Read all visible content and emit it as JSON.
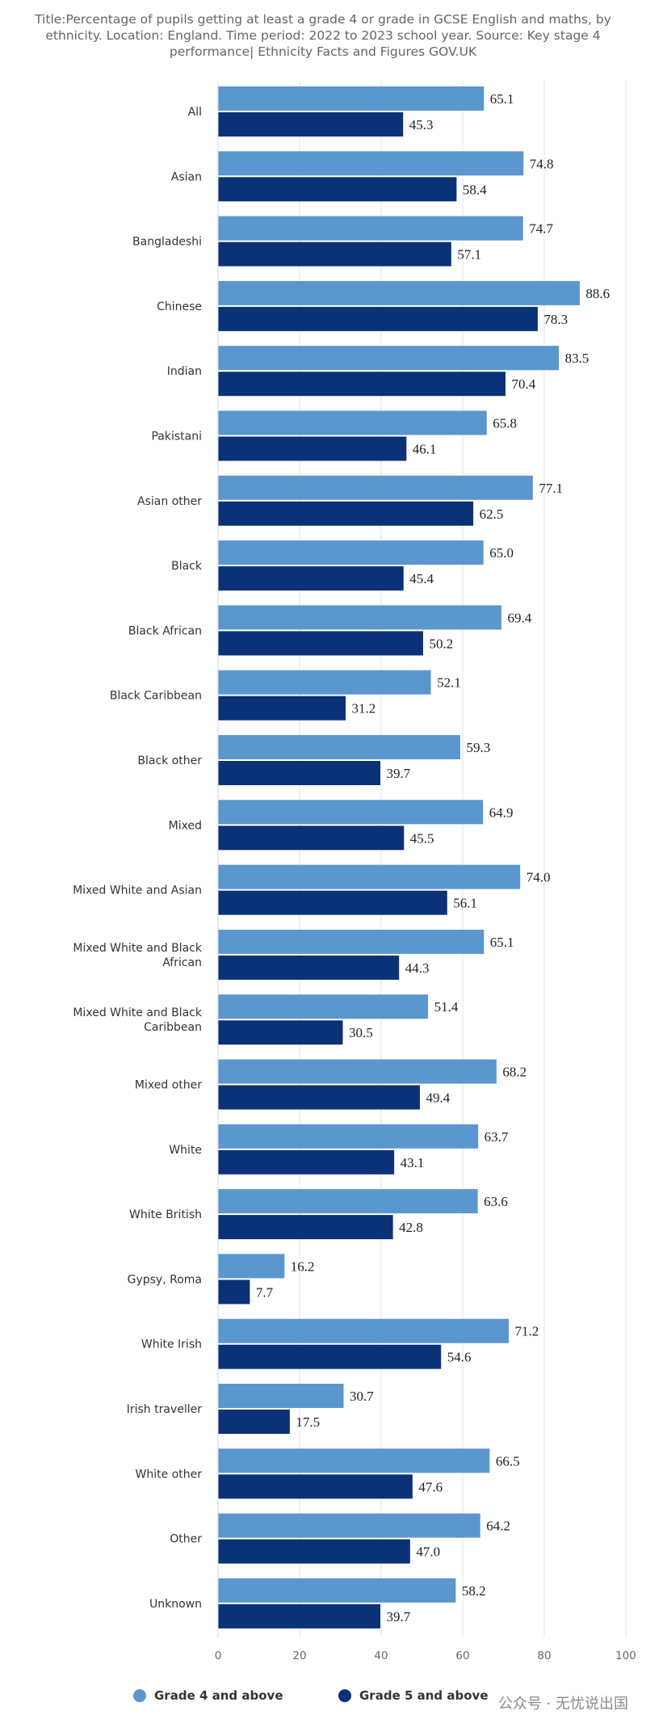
{
  "title": "Title:Percentage of pupils getting at least a grade 4 or grade in GCSE English and maths, by ethnicity. Location: England. Time period: 2022 to 2023 school year. Source: Key stage 4 performance| Ethnicity Facts and Figures GOV.UK",
  "watermark": "公众号 · 无忧说出国",
  "colors": {
    "grade4": "#5b97cf",
    "grade5": "#0b3277",
    "grid": "#e3e3e3",
    "axis": "#ccd6eb"
  },
  "chart_data": {
    "type": "bar",
    "orientation": "horizontal",
    "categories": [
      "All",
      "Asian",
      "Bangladeshi",
      "Chinese",
      "Indian",
      "Pakistani",
      "Asian other",
      "Black",
      "Black African",
      "Black Caribbean",
      "Black other",
      "Mixed",
      "Mixed White and Asian",
      "Mixed White and Black African",
      "Mixed White and Black Caribbean",
      "Mixed other",
      "White",
      "White British",
      "Gypsy, Roma",
      "White Irish",
      "Irish traveller",
      "White other",
      "Other",
      "Unknown"
    ],
    "series": [
      {
        "name": "Grade 4 and above",
        "values": [
          65.1,
          74.8,
          74.7,
          88.6,
          83.5,
          65.8,
          77.1,
          65.0,
          69.4,
          52.1,
          59.3,
          64.9,
          74.0,
          65.1,
          51.4,
          68.2,
          63.7,
          63.6,
          16.2,
          71.2,
          30.7,
          66.5,
          64.2,
          58.2
        ]
      },
      {
        "name": "Grade 5 and above",
        "values": [
          45.3,
          58.4,
          57.1,
          78.3,
          70.4,
          46.1,
          62.5,
          45.4,
          50.2,
          31.2,
          39.7,
          45.5,
          56.1,
          44.3,
          30.5,
          49.4,
          43.1,
          42.8,
          7.7,
          54.6,
          17.5,
          47.6,
          47.0,
          39.7
        ]
      }
    ],
    "xlim": [
      0,
      100
    ],
    "xticks": [
      0,
      20,
      40,
      60,
      80,
      100
    ],
    "grid": true,
    "legend": "bottom"
  }
}
